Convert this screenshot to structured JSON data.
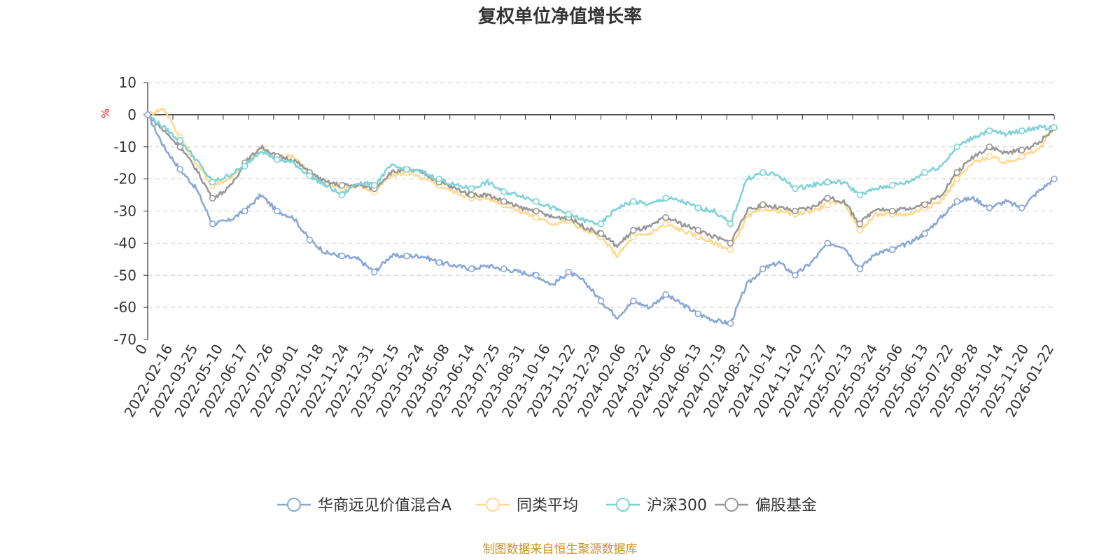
{
  "chart_data": {
    "type": "line",
    "title": "复权单位净值增长率",
    "ylabel": "%",
    "ylim": [
      -70,
      10
    ],
    "yticks": [
      10,
      0,
      -10,
      -20,
      -30,
      -40,
      -50,
      -60,
      -70
    ],
    "x_tick_labels": [
      "0",
      "2022-02-16",
      "2022-03-25",
      "2022-05-10",
      "2022-06-17",
      "2022-07-26",
      "2022-09-01",
      "2022-10-18",
      "2022-11-24",
      "2022-12-31",
      "2023-02-15",
      "2023-03-24",
      "2023-05-08",
      "2023-06-14",
      "2023-07-25",
      "2023-08-31",
      "2023-10-16",
      "2023-11-22",
      "2023-12-29",
      "2024-02-06",
      "2024-03-22",
      "2024-05-06",
      "2024-06-13",
      "2024-07-19",
      "2024-08-27",
      "2024-10-14",
      "2024-11-20",
      "2024-12-27",
      "2025-02-13",
      "2025-03-24",
      "2025-05-06",
      "2025-06-13",
      "2025-07-22",
      "2025-08-28",
      "2025-10-14",
      "2025-11-20",
      "2026-01-22"
    ],
    "grid": true,
    "legend_position": "bottom",
    "series": [
      {
        "name": "华商远见价值混合A",
        "color": "#8aa8d6",
        "values": [
          0,
          -10,
          -17,
          -23,
          -34,
          -33,
          -30,
          -25,
          -30,
          -32,
          -39,
          -43,
          -44,
          -45,
          -49,
          -44,
          -44,
          -44,
          -46,
          -47,
          -48,
          -47,
          -48,
          -49,
          -50,
          -53,
          -49,
          -52,
          -58,
          -63,
          -58,
          -60,
          -56,
          -59,
          -62,
          -64,
          -65,
          -53,
          -48,
          -46,
          -50,
          -46,
          -40,
          -41,
          -48,
          -43,
          -42,
          -40,
          -37,
          -32,
          -27,
          -26,
          -29,
          -27,
          -29,
          -24,
          -20
        ]
      },
      {
        "name": "同类平均",
        "color": "#ffd98f",
        "values": [
          0,
          2,
          -7,
          -15,
          -22,
          -20,
          -16,
          -10,
          -13,
          -13,
          -18,
          -22,
          -23,
          -22,
          -24,
          -19,
          -18,
          -20,
          -22,
          -24,
          -26,
          -26,
          -28,
          -30,
          -32,
          -34,
          -33,
          -36,
          -38,
          -44,
          -38,
          -37,
          -34,
          -36,
          -38,
          -40,
          -42,
          -32,
          -29,
          -30,
          -31,
          -30,
          -28,
          -27,
          -36,
          -31,
          -31,
          -31,
          -29,
          -27,
          -20,
          -15,
          -13,
          -15,
          -13,
          -11,
          -4
        ]
      },
      {
        "name": "沪深300",
        "color": "#7fd3d6",
        "values": [
          0,
          -4,
          -8,
          -14,
          -21,
          -19,
          -16,
          -11,
          -14,
          -15,
          -19,
          -22,
          -25,
          -21,
          -22,
          -16,
          -17,
          -18,
          -20,
          -22,
          -23,
          -21,
          -24,
          -25,
          -27,
          -29,
          -31,
          -33,
          -34,
          -29,
          -27,
          -28,
          -26,
          -27,
          -29,
          -30,
          -34,
          -20,
          -18,
          -19,
          -23,
          -22,
          -21,
          -21,
          -25,
          -23,
          -22,
          -21,
          -18,
          -16,
          -10,
          -7,
          -5,
          -6,
          -5,
          -4,
          -4
        ]
      },
      {
        "name": "偏股基金",
        "color": "#999999",
        "values": [
          0,
          -5,
          -10,
          -17,
          -26,
          -23,
          -15,
          -10,
          -13,
          -14,
          -18,
          -21,
          -22,
          -22,
          -23,
          -18,
          -17,
          -18,
          -21,
          -23,
          -25,
          -25,
          -27,
          -29,
          -30,
          -32,
          -32,
          -35,
          -37,
          -41,
          -36,
          -35,
          -32,
          -34,
          -36,
          -38,
          -40,
          -30,
          -28,
          -29,
          -30,
          -29,
          -26,
          -27,
          -34,
          -29,
          -30,
          -29,
          -28,
          -25,
          -18,
          -13,
          -10,
          -12,
          -11,
          -9,
          -4
        ]
      }
    ]
  },
  "footer": {
    "source": "制图数据来自恒生聚源数据库"
  }
}
